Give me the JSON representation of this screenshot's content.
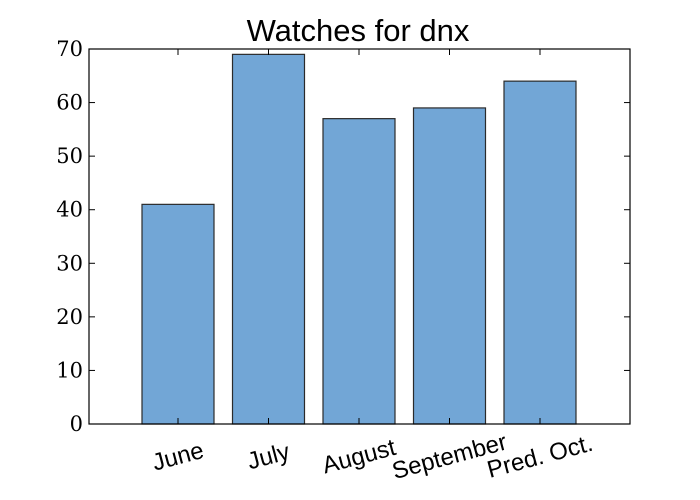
{
  "chart_data": {
    "type": "bar",
    "title": "Watches for dnx",
    "xlabel": "",
    "ylabel": "",
    "categories": [
      "June",
      "July",
      "August",
      "September",
      "Pred. Oct."
    ],
    "values": [
      41,
      69,
      57,
      59,
      64
    ],
    "ylim": [
      0,
      70
    ],
    "yticks": [
      0,
      10,
      20,
      30,
      40,
      50,
      60,
      70
    ],
    "grid": false,
    "bar_color": "#72a6d6",
    "edge_color": "#2b2b2b"
  }
}
